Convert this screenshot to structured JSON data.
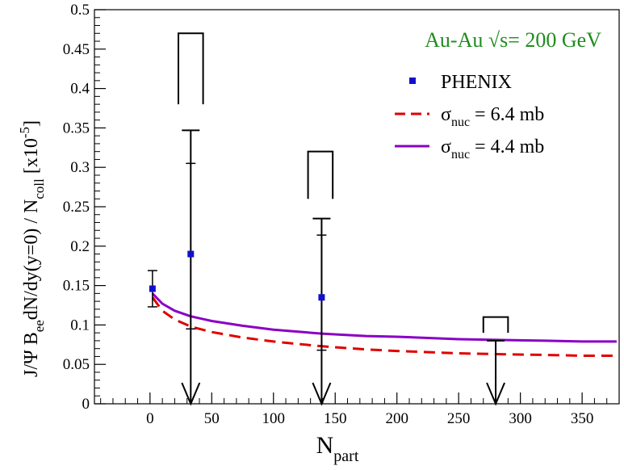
{
  "chart_data": {
    "type": "scatter",
    "title": "",
    "annotation": "Au-Au √s= 200 GeV",
    "xlabel": {
      "main": "N",
      "sub": "part"
    },
    "ylabel": {
      "p1": "J/Ψ B",
      "p1sub": "ee",
      "p2": "dN/dy(y=0) / N",
      "p2sub": "coll",
      "p3": " [x10",
      "p3sup": "-5",
      "p4": "]"
    },
    "xlim": [
      -45,
      380
    ],
    "ylim": [
      0,
      0.5
    ],
    "x_ticks": [
      0,
      50,
      100,
      150,
      200,
      250,
      300,
      350
    ],
    "y_ticks": [
      0,
      0.05,
      0.1,
      0.15,
      0.2,
      0.25,
      0.3,
      0.35,
      0.4,
      0.45,
      0.5
    ],
    "y_tick_labels": [
      "0",
      "0.05",
      "0.1",
      "0.15",
      "0.2",
      "0.25",
      "0.3",
      "0.35",
      "0.4",
      "0.45",
      "0.5"
    ],
    "grid": false,
    "legend_position": "top-right",
    "colors": {
      "phenix": "#1010cc",
      "red": "#e00000",
      "purple": "#8a00c4",
      "annotation": "#1f8c1f"
    },
    "legend": [
      {
        "kind": "marker",
        "label": "PHENIX"
      },
      {
        "kind": "dashed",
        "label": "σ",
        "sub": "nuc",
        "tail": " = 6.4 mb"
      },
      {
        "kind": "solid",
        "label": "σ",
        "sub": "nuc",
        "tail": " = 4.4 mb"
      }
    ],
    "phenix_points": [
      {
        "x": 2,
        "y": 0.146,
        "err_low": 0.123,
        "err_high": 0.169
      },
      {
        "x": 33,
        "y": 0.19,
        "err_low": 0.095,
        "err_high": 0.305,
        "upper_limit_top": 0.347,
        "arrow_to": 0.0
      },
      {
        "x": 139,
        "y": 0.135,
        "err_low": 0.068,
        "err_high": 0.214,
        "upper_limit_top": 0.235,
        "arrow_to": 0.0
      },
      {
        "x": 280,
        "y": null,
        "upper_limit_top": 0.08,
        "arrow_to": 0.0
      }
    ],
    "systematic_brackets": [
      {
        "x_min": 23,
        "x_max": 43,
        "y_top": 0.47,
        "y_bottom": 0.38
      },
      {
        "x_min": 128,
        "x_max": 148,
        "y_top": 0.32,
        "y_bottom": 0.26
      },
      {
        "x_min": 270,
        "x_max": 290,
        "y_top": 0.11,
        "y_bottom": 0.09
      }
    ],
    "series": [
      {
        "name": "σnuc = 6.4 mb",
        "style": "dashed",
        "x": [
          2,
          10,
          20,
          33,
          50,
          75,
          100,
          139,
          175,
          200,
          250,
          280,
          320,
          350,
          378
        ],
        "y": [
          0.135,
          0.118,
          0.107,
          0.098,
          0.091,
          0.084,
          0.079,
          0.073,
          0.069,
          0.067,
          0.064,
          0.063,
          0.062,
          0.061,
          0.061
        ]
      },
      {
        "name": "σnuc = 4.4 mb",
        "style": "solid",
        "x": [
          2,
          10,
          20,
          33,
          50,
          75,
          100,
          139,
          175,
          200,
          250,
          280,
          320,
          350,
          378
        ],
        "y": [
          0.14,
          0.127,
          0.118,
          0.111,
          0.105,
          0.099,
          0.094,
          0.089,
          0.086,
          0.085,
          0.082,
          0.081,
          0.08,
          0.079,
          0.079
        ]
      }
    ]
  }
}
